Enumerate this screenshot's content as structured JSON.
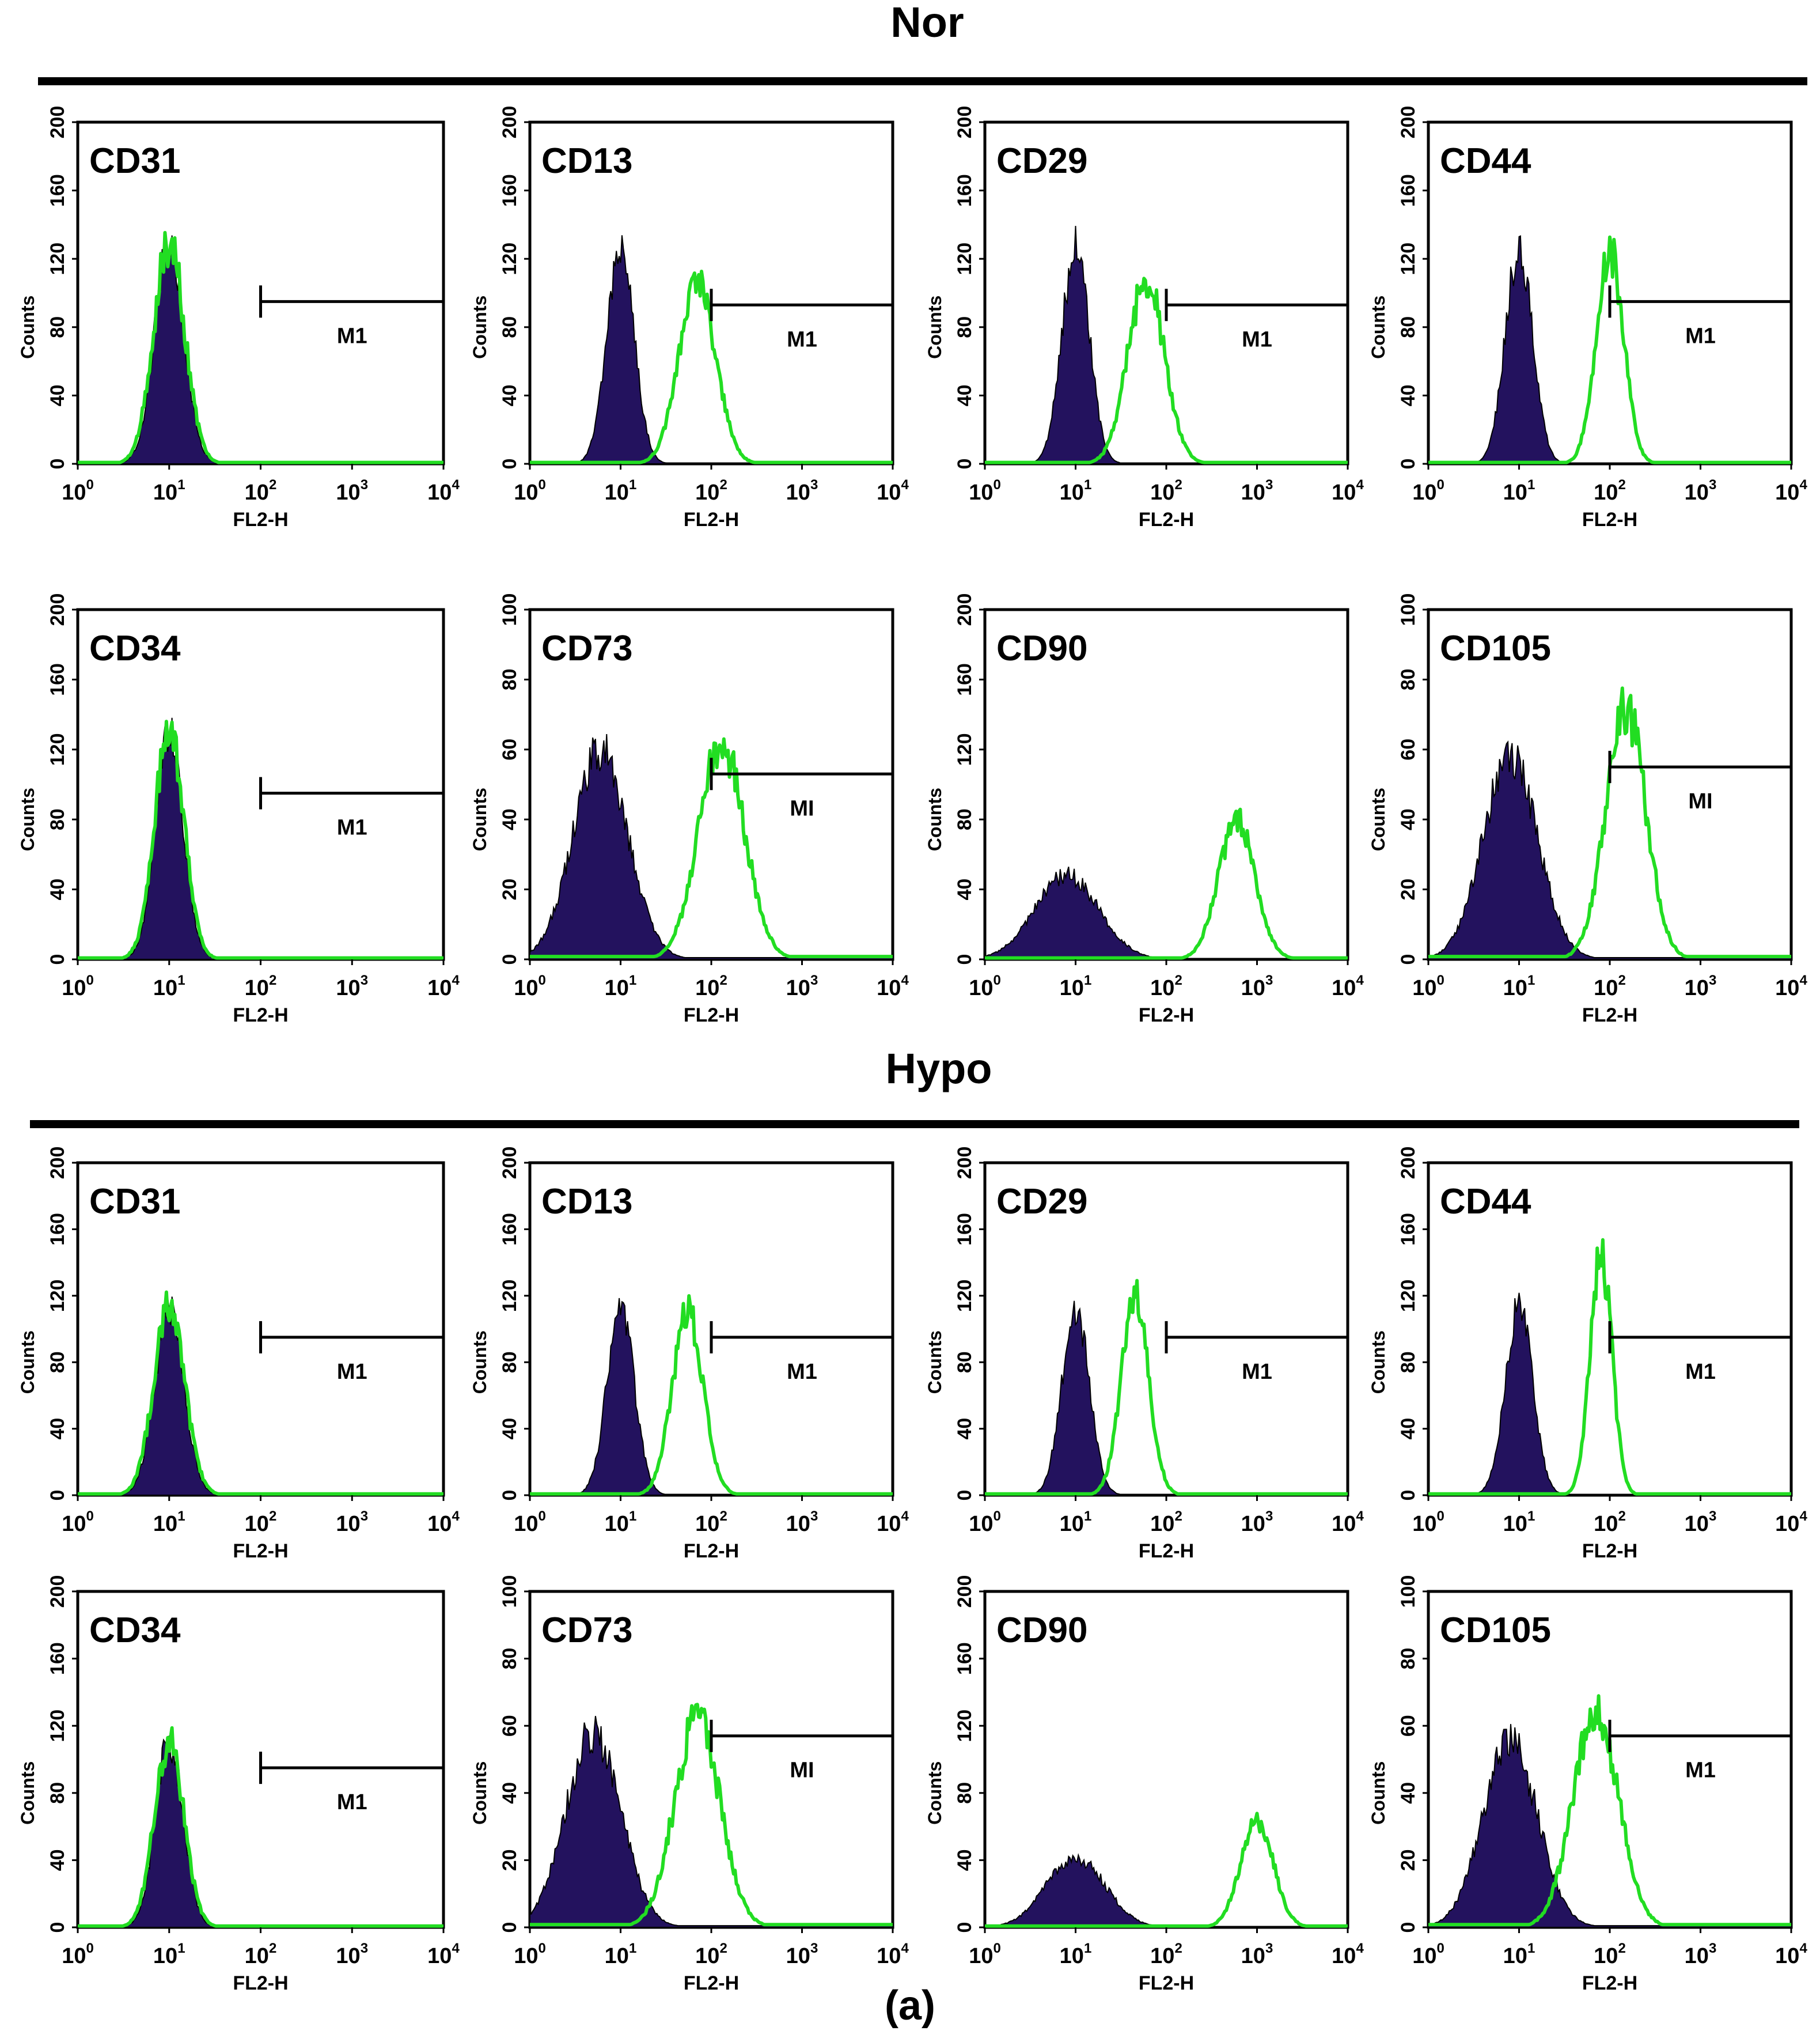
{
  "figure": {
    "sections": [
      {
        "title": "Nor"
      },
      {
        "title": "Hypo"
      }
    ],
    "caption": "(a)"
  },
  "colors": {
    "isotype_fill": "#23125e",
    "marker_line": "#22dd22",
    "gate_line": "#000000",
    "frame": "#000000"
  },
  "chart_data": [
    {
      "section": "Nor",
      "marker": "CD31",
      "type": "histogram",
      "xscale": "log",
      "xlim": [
        1,
        10000
      ],
      "xticks": [
        {
          "b": "10",
          "e": "0"
        },
        {
          "b": "10",
          "e": "1"
        },
        {
          "b": "10",
          "e": "2"
        },
        {
          "b": "10",
          "e": "3"
        },
        {
          "b": "10",
          "e": "4"
        }
      ],
      "xlabel": "FL2-H",
      "ylabel": "Counts",
      "ylim": [
        0,
        200
      ],
      "yticks": [
        "0",
        "40",
        "80",
        "120",
        "160",
        "200"
      ],
      "gate": {
        "label": "M1",
        "start": 100,
        "end": 10000,
        "level": 95
      },
      "isotype": {
        "peak": 10,
        "height": 128,
        "width": 0.16
      },
      "marker_curve": {
        "peak": 10,
        "height": 130,
        "width": 0.17
      }
    },
    {
      "section": "Nor",
      "marker": "CD13",
      "type": "histogram",
      "xscale": "log",
      "xlim": [
        1,
        10000
      ],
      "xticks": [
        {
          "b": "10",
          "e": "0"
        },
        {
          "b": "10",
          "e": "1"
        },
        {
          "b": "10",
          "e": "2"
        },
        {
          "b": "10",
          "e": "3"
        },
        {
          "b": "10",
          "e": "4"
        }
      ],
      "xlabel": "FL2-H",
      "ylabel": "Counts",
      "ylim": [
        0,
        200
      ],
      "yticks": [
        "0",
        "40",
        "80",
        "120",
        "160",
        "200"
      ],
      "gate": {
        "label": "M1",
        "start": 100,
        "end": 10000,
        "level": 93
      },
      "isotype": {
        "peak": 10,
        "height": 127,
        "width": 0.15
      },
      "marker_curve": {
        "peak": 70,
        "height": 108,
        "width": 0.2
      }
    },
    {
      "section": "Nor",
      "marker": "CD29",
      "type": "histogram",
      "xscale": "log",
      "xlim": [
        1,
        10000
      ],
      "xticks": [
        {
          "b": "10",
          "e": "0"
        },
        {
          "b": "10",
          "e": "1"
        },
        {
          "b": "10",
          "e": "2"
        },
        {
          "b": "10",
          "e": "3"
        },
        {
          "b": "10",
          "e": "4"
        }
      ],
      "xlabel": "FL2-H",
      "ylabel": "Counts",
      "ylim": [
        0,
        200
      ],
      "yticks": [
        "0",
        "40",
        "80",
        "120",
        "160",
        "200"
      ],
      "gate": {
        "label": "M1",
        "start": 100,
        "end": 10000,
        "level": 93
      },
      "isotype": {
        "peak": 10,
        "height": 127,
        "width": 0.15
      },
      "marker_curve": {
        "peak": 60,
        "height": 108,
        "width": 0.2
      }
    },
    {
      "section": "Nor",
      "marker": "CD44",
      "type": "histogram",
      "xscale": "log",
      "xlim": [
        1,
        10000
      ],
      "xticks": [
        {
          "b": "10",
          "e": "0"
        },
        {
          "b": "10",
          "e": "1"
        },
        {
          "b": "10",
          "e": "2"
        },
        {
          "b": "10",
          "e": "3"
        },
        {
          "b": "10",
          "e": "4"
        }
      ],
      "xlabel": "FL2-H",
      "ylabel": "Counts",
      "ylim": [
        0,
        200
      ],
      "yticks": [
        "0",
        "40",
        "80",
        "120",
        "160",
        "200"
      ],
      "gate": {
        "label": "M1",
        "start": 100,
        "end": 10000,
        "level": 95
      },
      "isotype": {
        "peak": 10,
        "height": 127,
        "width": 0.15
      },
      "marker_curve": {
        "peak": 100,
        "height": 125,
        "width": 0.15
      }
    },
    {
      "section": "Nor",
      "marker": "CD34",
      "type": "histogram",
      "xscale": "log",
      "xlim": [
        1,
        10000
      ],
      "xticks": [
        {
          "b": "10",
          "e": "0"
        },
        {
          "b": "10",
          "e": "1"
        },
        {
          "b": "10",
          "e": "2"
        },
        {
          "b": "10",
          "e": "3"
        },
        {
          "b": "10",
          "e": "4"
        }
      ],
      "xlabel": "FL2-H",
      "ylabel": "Counts",
      "ylim": [
        0,
        200
      ],
      "yticks": [
        "0",
        "40",
        "80",
        "120",
        "160",
        "200"
      ],
      "gate": {
        "label": "M1",
        "start": 100,
        "end": 10000,
        "level": 95
      },
      "isotype": {
        "peak": 10,
        "height": 130,
        "width": 0.15
      },
      "marker_curve": {
        "peak": 10,
        "height": 132,
        "width": 0.16
      }
    },
    {
      "section": "Nor",
      "marker": "CD73",
      "type": "histogram",
      "xscale": "log",
      "xlim": [
        1,
        10000
      ],
      "xticks": [
        {
          "b": "10",
          "e": "0"
        },
        {
          "b": "10",
          "e": "1"
        },
        {
          "b": "10",
          "e": "2"
        },
        {
          "b": "10",
          "e": "3"
        },
        {
          "b": "10",
          "e": "4"
        }
      ],
      "xlabel": "FL2-H",
      "ylabel": "Counts",
      "ylim": [
        0,
        100
      ],
      "yticks": [
        "0",
        "20",
        "40",
        "60",
        "80",
        "100"
      ],
      "gate": {
        "label": "MI",
        "start": 100,
        "end": 10000,
        "level": 53
      },
      "isotype": {
        "peak": 6,
        "height": 60,
        "width": 0.3
      },
      "marker_curve": {
        "peak": 130,
        "height": 62,
        "width": 0.25
      }
    },
    {
      "section": "Nor",
      "marker": "CD90",
      "type": "histogram",
      "xscale": "log",
      "xlim": [
        1,
        10000
      ],
      "xticks": [
        {
          "b": "10",
          "e": "0"
        },
        {
          "b": "10",
          "e": "1"
        },
        {
          "b": "10",
          "e": "2"
        },
        {
          "b": "10",
          "e": "3"
        },
        {
          "b": "10",
          "e": "4"
        }
      ],
      "xlabel": "FL2-H",
      "ylabel": "Counts",
      "ylim": [
        0,
        200
      ],
      "yticks": [
        "0",
        "40",
        "80",
        "120",
        "160",
        "200"
      ],
      "gate": null,
      "isotype": {
        "peak": 8,
        "height": 48,
        "width": 0.35
      },
      "marker_curve": {
        "peak": 600,
        "height": 80,
        "width": 0.2
      }
    },
    {
      "section": "Nor",
      "marker": "CD105",
      "type": "histogram",
      "xscale": "log",
      "xlim": [
        1,
        10000
      ],
      "xticks": [
        {
          "b": "10",
          "e": "0"
        },
        {
          "b": "10",
          "e": "1"
        },
        {
          "b": "10",
          "e": "2"
        },
        {
          "b": "10",
          "e": "3"
        },
        {
          "b": "10",
          "e": "4"
        }
      ],
      "xlabel": "FL2-H",
      "ylabel": "Counts",
      "ylim": [
        0,
        100
      ],
      "yticks": [
        "0",
        "20",
        "40",
        "60",
        "80",
        "100"
      ],
      "gate": {
        "label": "MI",
        "start": 100,
        "end": 10000,
        "level": 55
      },
      "isotype": {
        "peak": 8,
        "height": 58,
        "width": 0.3
      },
      "marker_curve": {
        "peak": 150,
        "height": 72,
        "width": 0.22
      }
    },
    {
      "section": "Hypo",
      "marker": "CD31",
      "type": "histogram",
      "xscale": "log",
      "xlim": [
        1,
        10000
      ],
      "xticks": [
        {
          "b": "10",
          "e": "0"
        },
        {
          "b": "10",
          "e": "1"
        },
        {
          "b": "10",
          "e": "2"
        },
        {
          "b": "10",
          "e": "3"
        },
        {
          "b": "10",
          "e": "4"
        }
      ],
      "xlabel": "FL2-H",
      "ylabel": "Counts",
      "ylim": [
        0,
        200
      ],
      "yticks": [
        "0",
        "40",
        "80",
        "120",
        "160",
        "200"
      ],
      "gate": {
        "label": "M1",
        "start": 100,
        "end": 10000,
        "level": 95
      },
      "isotype": {
        "peak": 10,
        "height": 110,
        "width": 0.16
      },
      "marker_curve": {
        "peak": 10,
        "height": 112,
        "width": 0.17
      }
    },
    {
      "section": "Hypo",
      "marker": "CD13",
      "type": "histogram",
      "xscale": "log",
      "xlim": [
        1,
        10000
      ],
      "xticks": [
        {
          "b": "10",
          "e": "0"
        },
        {
          "b": "10",
          "e": "1"
        },
        {
          "b": "10",
          "e": "2"
        },
        {
          "b": "10",
          "e": "3"
        },
        {
          "b": "10",
          "e": "4"
        }
      ],
      "xlabel": "FL2-H",
      "ylabel": "Counts",
      "ylim": [
        0,
        200
      ],
      "yticks": [
        "0",
        "40",
        "80",
        "120",
        "160",
        "200"
      ],
      "gate": {
        "label": "M1",
        "start": 100,
        "end": 10000,
        "level": 95
      },
      "isotype": {
        "peak": 10,
        "height": 112,
        "width": 0.15
      },
      "marker_curve": {
        "peak": 55,
        "height": 110,
        "width": 0.17
      }
    },
    {
      "section": "Hypo",
      "marker": "CD29",
      "type": "histogram",
      "xscale": "log",
      "xlim": [
        1,
        10000
      ],
      "xticks": [
        {
          "b": "10",
          "e": "0"
        },
        {
          "b": "10",
          "e": "1"
        },
        {
          "b": "10",
          "e": "2"
        },
        {
          "b": "10",
          "e": "3"
        },
        {
          "b": "10",
          "e": "4"
        }
      ],
      "xlabel": "FL2-H",
      "ylabel": "Counts",
      "ylim": [
        0,
        200
      ],
      "yticks": [
        "0",
        "40",
        "80",
        "120",
        "160",
        "200"
      ],
      "gate": {
        "label": "M1",
        "start": 100,
        "end": 10000,
        "level": 95
      },
      "isotype": {
        "peak": 10,
        "height": 112,
        "width": 0.15
      },
      "marker_curve": {
        "peak": 45,
        "height": 120,
        "width": 0.15
      }
    },
    {
      "section": "Hypo",
      "marker": "CD44",
      "type": "histogram",
      "xscale": "log",
      "xlim": [
        1,
        10000
      ],
      "xticks": [
        {
          "b": "10",
          "e": "0"
        },
        {
          "b": "10",
          "e": "1"
        },
        {
          "b": "10",
          "e": "2"
        },
        {
          "b": "10",
          "e": "3"
        },
        {
          "b": "10",
          "e": "4"
        }
      ],
      "xlabel": "FL2-H",
      "ylabel": "Counts",
      "ylim": [
        0,
        200
      ],
      "yticks": [
        "0",
        "40",
        "80",
        "120",
        "160",
        "200"
      ],
      "gate": {
        "label": "M1",
        "start": 100,
        "end": 10000,
        "level": 95
      },
      "isotype": {
        "peak": 10,
        "height": 112,
        "width": 0.15
      },
      "marker_curve": {
        "peak": 80,
        "height": 145,
        "width": 0.12
      }
    },
    {
      "section": "Hypo",
      "marker": "CD34",
      "type": "histogram",
      "xscale": "log",
      "xlim": [
        1,
        10000
      ],
      "xticks": [
        {
          "b": "10",
          "e": "0"
        },
        {
          "b": "10",
          "e": "1"
        },
        {
          "b": "10",
          "e": "2"
        },
        {
          "b": "10",
          "e": "3"
        },
        {
          "b": "10",
          "e": "4"
        }
      ],
      "xlabel": "FL2-H",
      "ylabel": "Counts",
      "ylim": [
        0,
        200
      ],
      "yticks": [
        "0",
        "40",
        "80",
        "120",
        "160",
        "200"
      ],
      "gate": {
        "label": "M1",
        "start": 100,
        "end": 10000,
        "level": 95
      },
      "isotype": {
        "peak": 10,
        "height": 110,
        "width": 0.15
      },
      "marker_curve": {
        "peak": 10,
        "height": 112,
        "width": 0.16
      }
    },
    {
      "section": "Hypo",
      "marker": "CD73",
      "type": "histogram",
      "xscale": "log",
      "xlim": [
        1,
        10000
      ],
      "xticks": [
        {
          "b": "10",
          "e": "0"
        },
        {
          "b": "10",
          "e": "1"
        },
        {
          "b": "10",
          "e": "2"
        },
        {
          "b": "10",
          "e": "3"
        },
        {
          "b": "10",
          "e": "4"
        }
      ],
      "xlabel": "FL2-H",
      "ylabel": "Counts",
      "ylim": [
        0,
        100
      ],
      "yticks": [
        "0",
        "20",
        "40",
        "60",
        "80",
        "100"
      ],
      "gate": {
        "label": "MI",
        "start": 100,
        "end": 10000,
        "level": 57
      },
      "isotype": {
        "peak": 5,
        "height": 58,
        "width": 0.3
      },
      "marker_curve": {
        "peak": 70,
        "height": 62,
        "width": 0.25
      }
    },
    {
      "section": "Hypo",
      "marker": "CD90",
      "type": "histogram",
      "xscale": "log",
      "xlim": [
        1,
        10000
      ],
      "xticks": [
        {
          "b": "10",
          "e": "0"
        },
        {
          "b": "10",
          "e": "1"
        },
        {
          "b": "10",
          "e": "2"
        },
        {
          "b": "10",
          "e": "3"
        },
        {
          "b": "10",
          "e": "4"
        }
      ],
      "xlabel": "FL2-H",
      "ylabel": "Counts",
      "ylim": [
        0,
        200
      ],
      "yticks": [
        "0",
        "40",
        "80",
        "120",
        "160",
        "200"
      ],
      "gate": null,
      "isotype": {
        "peak": 10,
        "height": 42,
        "width": 0.32
      },
      "marker_curve": {
        "peak": 1000,
        "height": 63,
        "width": 0.18
      }
    },
    {
      "section": "Hypo",
      "marker": "CD105",
      "type": "histogram",
      "xscale": "log",
      "xlim": [
        1,
        10000
      ],
      "xticks": [
        {
          "b": "10",
          "e": "0"
        },
        {
          "b": "10",
          "e": "1"
        },
        {
          "b": "10",
          "e": "2"
        },
        {
          "b": "10",
          "e": "3"
        },
        {
          "b": "10",
          "e": "4"
        }
      ],
      "xlabel": "FL2-H",
      "ylabel": "Counts",
      "ylim": [
        0,
        100
      ],
      "yticks": [
        "0",
        "20",
        "40",
        "60",
        "80",
        "100"
      ],
      "gate": {
        "label": "M1",
        "start": 100,
        "end": 10000,
        "level": 57
      },
      "isotype": {
        "peak": 8,
        "height": 55,
        "width": 0.3
      },
      "marker_curve": {
        "peak": 70,
        "height": 65,
        "width": 0.25
      }
    }
  ]
}
